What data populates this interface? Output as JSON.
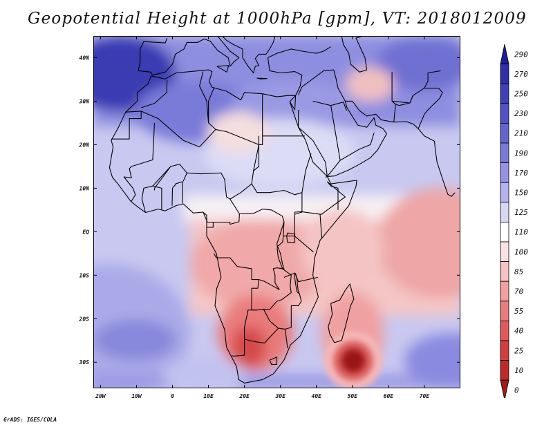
{
  "title": "Geopotential Height at 1000hPa [gpm], VT: 2018012009",
  "footer": "GrADS: IGES/COLA",
  "map": {
    "lon_range": [
      -22,
      80
    ],
    "lat_range": [
      -36,
      45
    ],
    "lon_ticks": [
      {
        "value": -20,
        "label": "20W"
      },
      {
        "value": -10,
        "label": "10W"
      },
      {
        "value": 0,
        "label": "0"
      },
      {
        "value": 10,
        "label": "10E"
      },
      {
        "value": 20,
        "label": "20E"
      },
      {
        "value": 30,
        "label": "30E"
      },
      {
        "value": 40,
        "label": "40E"
      },
      {
        "value": 50,
        "label": "50E"
      },
      {
        "value": 60,
        "label": "60E"
      },
      {
        "value": 70,
        "label": "70E"
      }
    ],
    "lat_ticks": [
      {
        "value": 40,
        "label": "40N"
      },
      {
        "value": 30,
        "label": "30N"
      },
      {
        "value": 20,
        "label": "20N"
      },
      {
        "value": 10,
        "label": "10N"
      },
      {
        "value": 0,
        "label": "EQ"
      },
      {
        "value": -10,
        "label": "10S"
      },
      {
        "value": -20,
        "label": "20S"
      },
      {
        "value": -30,
        "label": "30S"
      }
    ]
  },
  "colorbar": {
    "levels": [
      "290",
      "270",
      "250",
      "230",
      "210",
      "190",
      "170",
      "150",
      "125",
      "110",
      "100",
      "85",
      "70",
      "55",
      "40",
      "25",
      "10",
      "0"
    ],
    "colors": [
      "#1e1e96",
      "#2f2fa8",
      "#4040b8",
      "#5252c4",
      "#6464cf",
      "#7a7ad9",
      "#9494e2",
      "#b2b2ec",
      "#d6d6f5",
      "#ffffff",
      "#fbe2e2",
      "#f6c2c2",
      "#f0a0a0",
      "#e97c7c",
      "#e05a5a",
      "#d23e3e",
      "#bd2a2a",
      "#a01a1a"
    ]
  },
  "colors": {
    "coast": "#000000",
    "border": "#000000"
  }
}
